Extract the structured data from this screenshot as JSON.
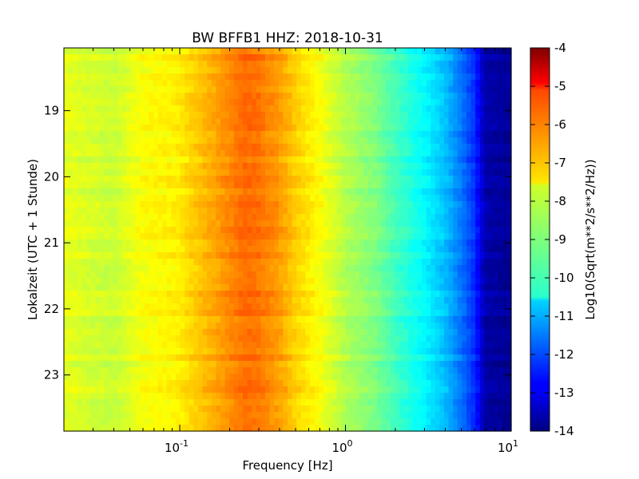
{
  "chart_data": {
    "type": "heatmap",
    "title": "BW BFFB1 HHZ: 2018-10-31",
    "xlabel": "Frequency [Hz]",
    "ylabel": "Lokalzeit (UTC + 1 Stunde)",
    "colorbar_label": "Log10(Sqrt(m**2/s**2/Hz))",
    "x_scale": "log",
    "x_range": [
      0.02,
      10
    ],
    "y_range": [
      18.05,
      23.85
    ],
    "y_inverted": true,
    "c_range": [
      -14,
      -4
    ],
    "colormap": "jet",
    "x_ticks": [
      {
        "base": "10",
        "exp": "-1"
      },
      {
        "base": "10",
        "exp": "0"
      },
      {
        "base": "10",
        "exp": "1"
      }
    ],
    "y_ticks": [
      "19",
      "20",
      "21",
      "22",
      "23"
    ],
    "c_ticks": [
      "-4",
      "-5",
      "-6",
      "-7",
      "-8",
      "-9",
      "-10",
      "-11",
      "-12",
      "-13",
      "-14"
    ],
    "rows": 60,
    "spectrum_profile": {
      "frequency_hz": [
        0.02,
        0.04,
        0.06,
        0.1,
        0.12,
        0.15,
        0.2,
        0.25,
        0.3,
        0.4,
        0.5,
        0.7,
        1.0,
        1.5,
        2.0,
        3.0,
        4.0,
        5.0,
        6.0,
        7.0,
        10.0
      ],
      "log10_amplitude": [
        -8.0,
        -8.3,
        -7.8,
        -7.6,
        -7.3,
        -7.0,
        -6.6,
        -6.3,
        -6.4,
        -6.8,
        -7.3,
        -7.8,
        -8.5,
        -9.0,
        -9.6,
        -10.3,
        -10.9,
        -11.6,
        -12.3,
        -13.6,
        -13.8
      ]
    }
  }
}
